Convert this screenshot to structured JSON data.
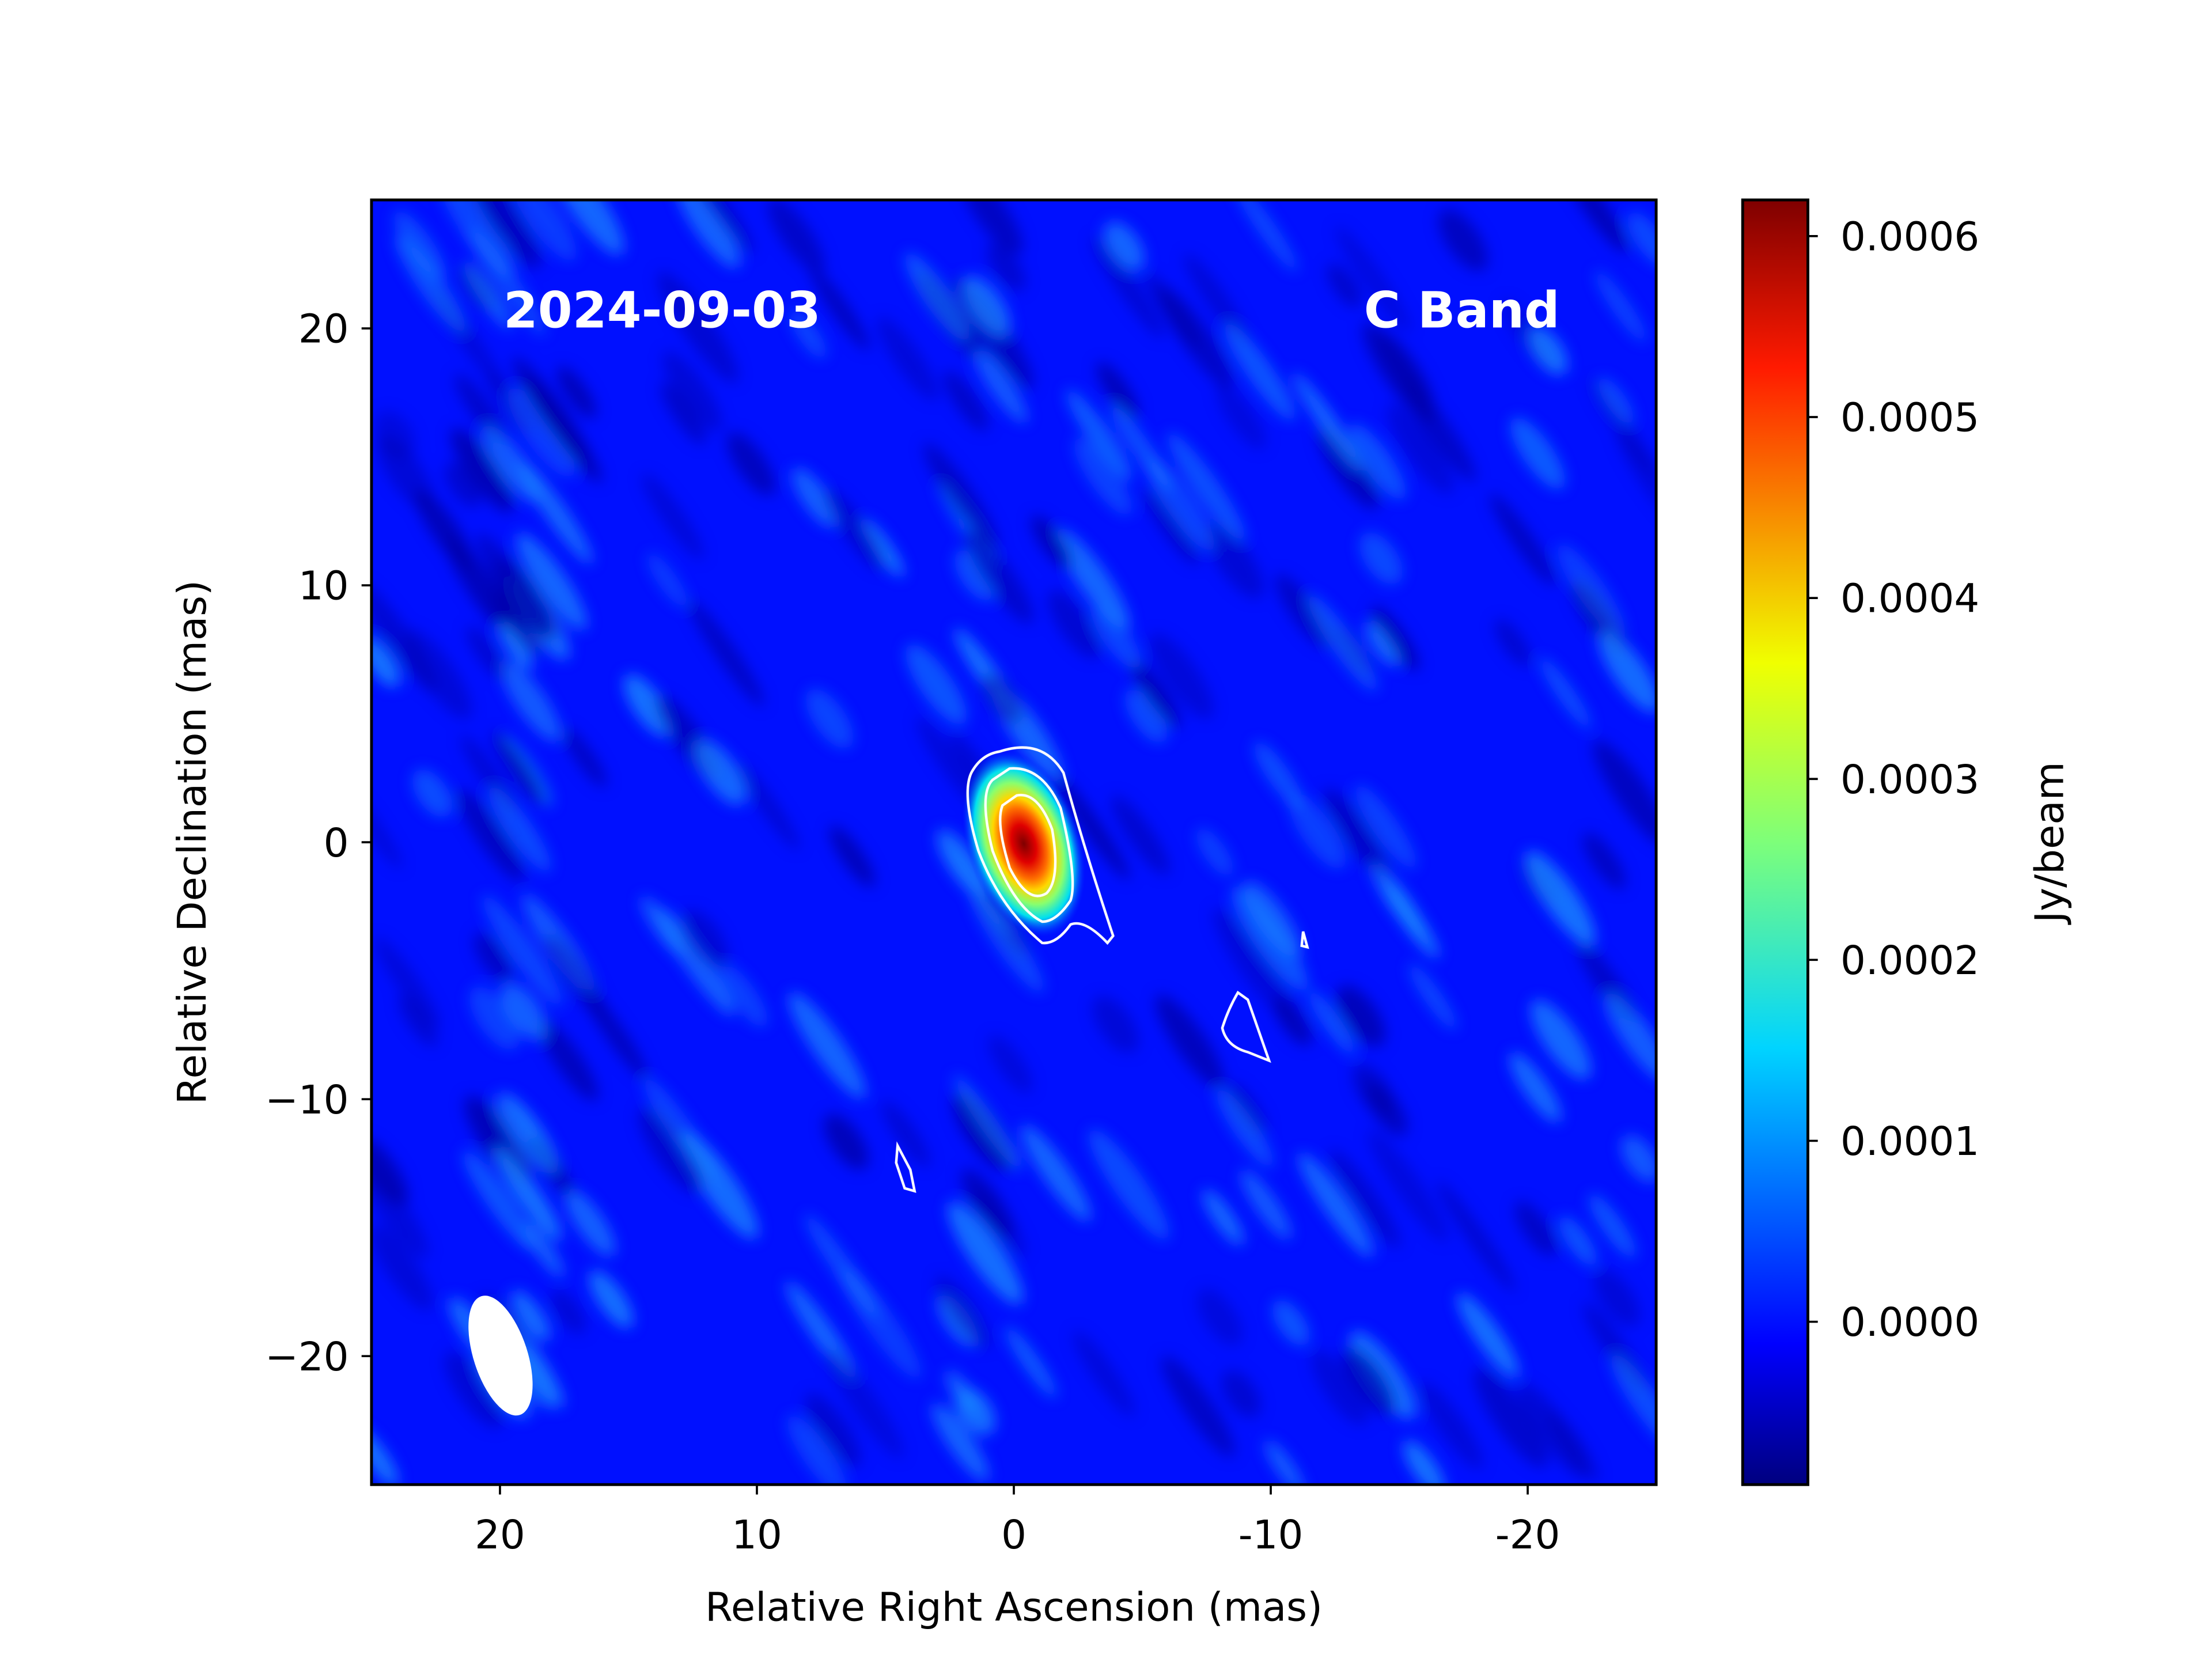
{
  "chart_data": {
    "type": "heatmap",
    "annotations": {
      "date": "2024-09-03",
      "band": "C Band"
    },
    "xlabel": "Relative Right Ascension (mas)",
    "ylabel": "Relative Declination (mas)",
    "xlim": [
      25,
      -25
    ],
    "ylim": [
      -25,
      25
    ],
    "xticks": [
      20,
      10,
      0,
      -10,
      -20
    ],
    "xtick_labels": [
      "20",
      "10",
      "0",
      "-10",
      "-20"
    ],
    "yticks": [
      20,
      10,
      0,
      -10,
      -20
    ],
    "ytick_labels": [
      "20",
      "10",
      "0",
      "−10",
      "−20"
    ],
    "colormap": "jet",
    "colorbar": {
      "label": "Jy/beam",
      "range": [
        -9e-05,
        0.00062
      ],
      "ticks": [
        0.0,
        0.0001,
        0.0002,
        0.0003,
        0.0004,
        0.0005,
        0.0006
      ],
      "tick_labels": [
        "0.0000",
        "0.0001",
        "0.0002",
        "0.0003",
        "0.0004",
        "0.0005",
        "0.0006"
      ]
    },
    "source": {
      "ra": 0,
      "dec": 0,
      "peak": 0.00062
    },
    "beam": {
      "ra": 20,
      "dec": -19.5,
      "major_mas": 4.8,
      "minor_mas": 2.2,
      "pa_deg": -20
    },
    "contour_color": "#ffffff"
  }
}
